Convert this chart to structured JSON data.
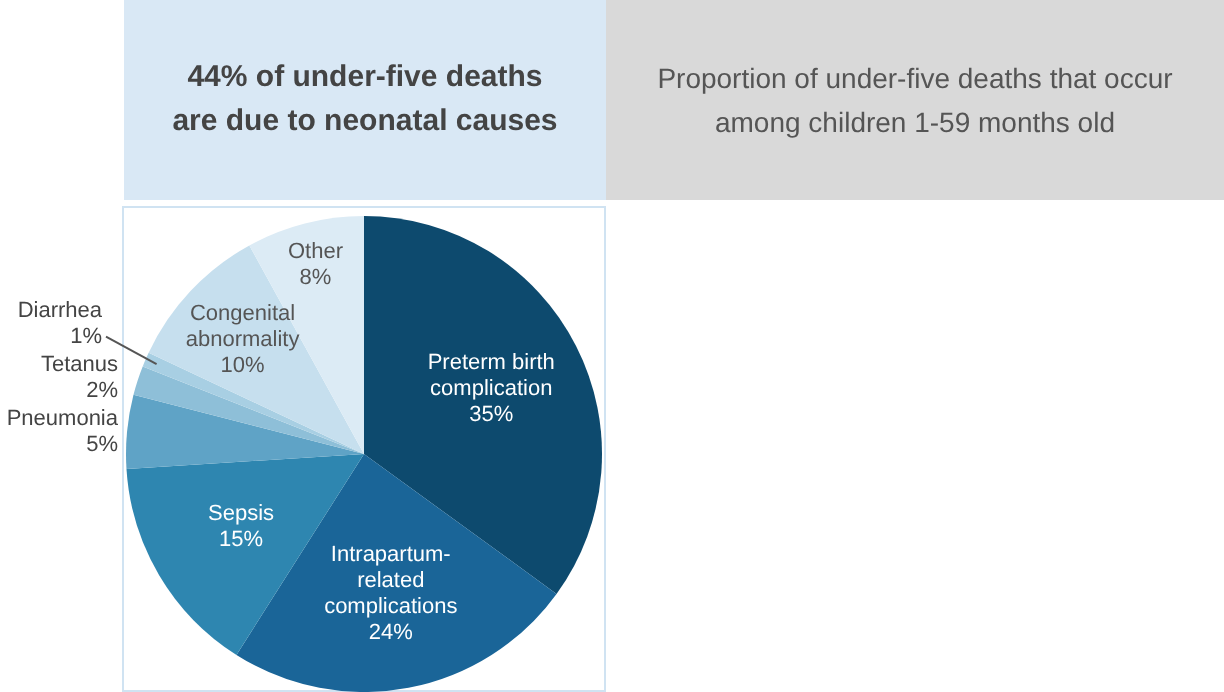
{
  "chart_data": {
    "type": "pie",
    "title": "44% of under-five deaths are due to neonatal causes",
    "subtitle": "Proportion of under-five deaths that occur among children 1-59 months old",
    "categories": [
      "Preterm birth complication",
      "Intrapartum-related complications",
      "Sepsis",
      "Pneumonia",
      "Tetanus",
      "Diarrhea",
      "Congenital abnormality",
      "Other"
    ],
    "values": [
      35,
      24,
      15,
      5,
      2,
      1,
      10,
      8
    ],
    "colors": [
      "#0d4a6e",
      "#1a6598",
      "#2e86b0",
      "#5fa3c6",
      "#8ebfd8",
      "#a8cfe3",
      "#c6dfee",
      "#dcebf5"
    ],
    "value_labels": [
      "35%",
      "24%",
      "15%",
      "5%",
      "2%",
      "1%",
      "10%",
      "8%"
    ],
    "legend": false
  }
}
